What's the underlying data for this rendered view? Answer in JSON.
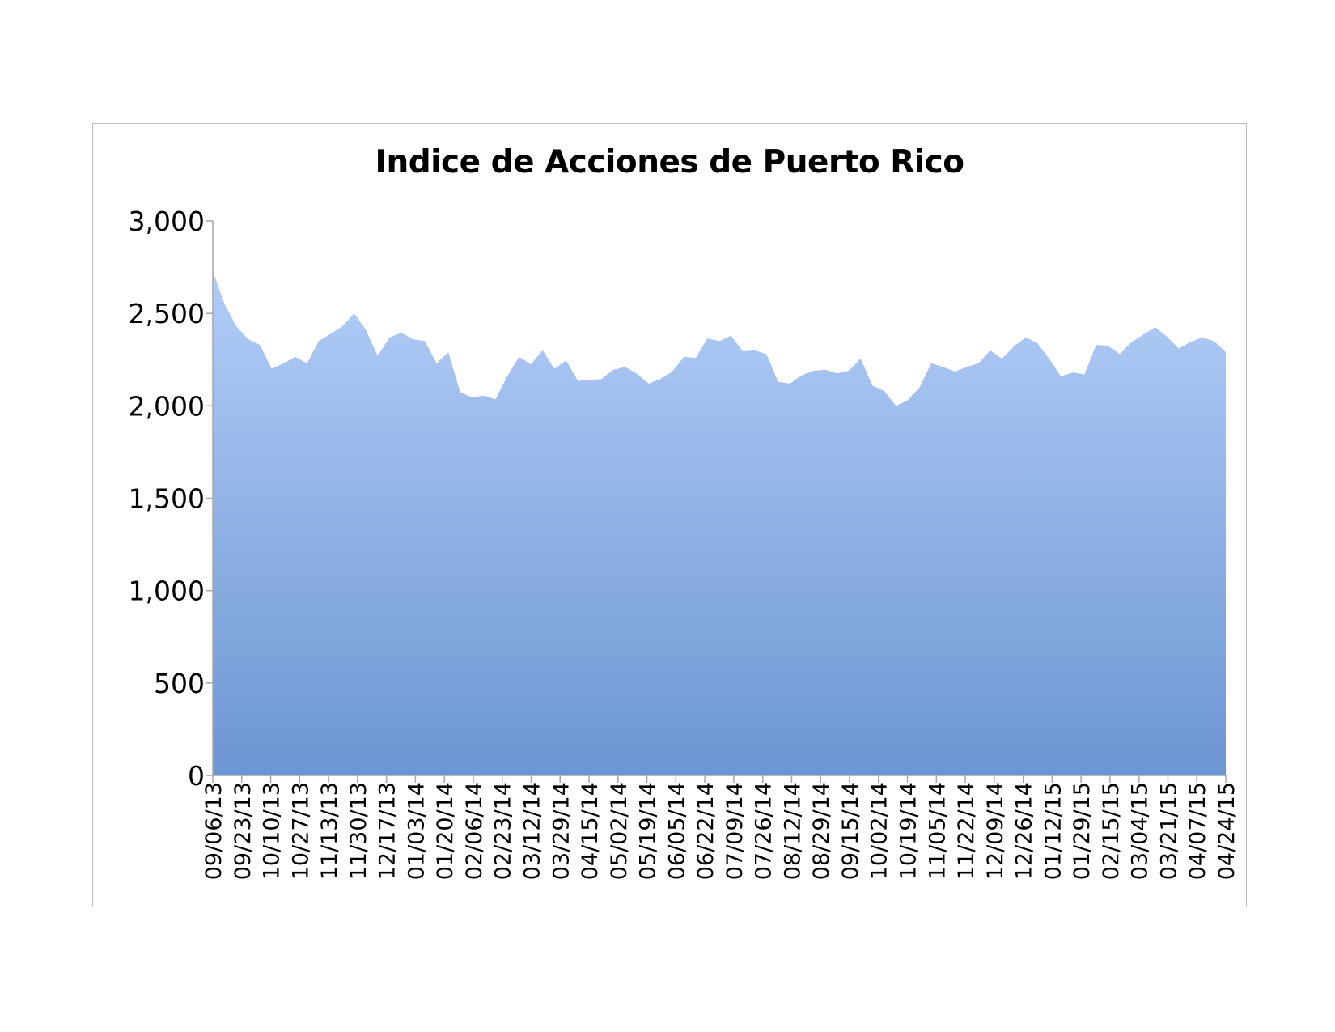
{
  "chart_data": {
    "type": "area",
    "title": "Indice de Acciones de Puerto Rico",
    "xlabel": "",
    "ylabel": "",
    "ylim": [
      0,
      3000
    ],
    "yticks": [
      0,
      500,
      1000,
      1500,
      2000,
      2500,
      3000
    ],
    "ytick_labels": [
      "0",
      "500",
      "1,000",
      "1,500",
      "2,000",
      "2,500",
      "3,000"
    ],
    "xtick_labels": [
      "09/06/13",
      "09/23/13",
      "10/10/13",
      "10/27/13",
      "11/13/13",
      "11/30/13",
      "12/17/13",
      "01/03/14",
      "01/20/14",
      "02/06/14",
      "02/23/14",
      "03/12/14",
      "03/29/14",
      "04/15/14",
      "05/02/14",
      "05/19/14",
      "06/05/14",
      "06/22/14",
      "07/09/14",
      "07/26/14",
      "08/12/14",
      "08/29/14",
      "09/15/14",
      "10/02/14",
      "10/19/14",
      "11/05/14",
      "11/22/14",
      "12/09/14",
      "12/26/14",
      "01/12/15",
      "01/29/15",
      "02/15/15",
      "03/04/15",
      "03/21/15",
      "04/07/15",
      "04/24/15"
    ],
    "grid": false,
    "legend": "none",
    "fill_top_color": "#b3cdf8",
    "fill_bottom_color": "#6c96d2",
    "series": [
      {
        "values": [
          2730,
          2550,
          2430,
          2360,
          2330,
          2200,
          2230,
          2265,
          2230,
          2350,
          2390,
          2430,
          2500,
          2410,
          2270,
          2370,
          2395,
          2360,
          2350,
          2230,
          2290,
          2075,
          2045,
          2055,
          2035,
          2160,
          2265,
          2225,
          2300,
          2200,
          2245,
          2135,
          2140,
          2145,
          2195,
          2210,
          2175,
          2120,
          2145,
          2185,
          2265,
          2260,
          2365,
          2350,
          2380,
          2295,
          2300,
          2280,
          2130,
          2120,
          2165,
          2190,
          2195,
          2175,
          2190,
          2255,
          2110,
          2080,
          2000,
          2030,
          2100,
          2230,
          2210,
          2185,
          2210,
          2230,
          2300,
          2255,
          2320,
          2370,
          2340,
          2255,
          2160,
          2180,
          2170,
          2330,
          2325,
          2280,
          2345,
          2385,
          2425,
          2375,
          2310,
          2345,
          2370,
          2350,
          2290
        ]
      }
    ]
  }
}
